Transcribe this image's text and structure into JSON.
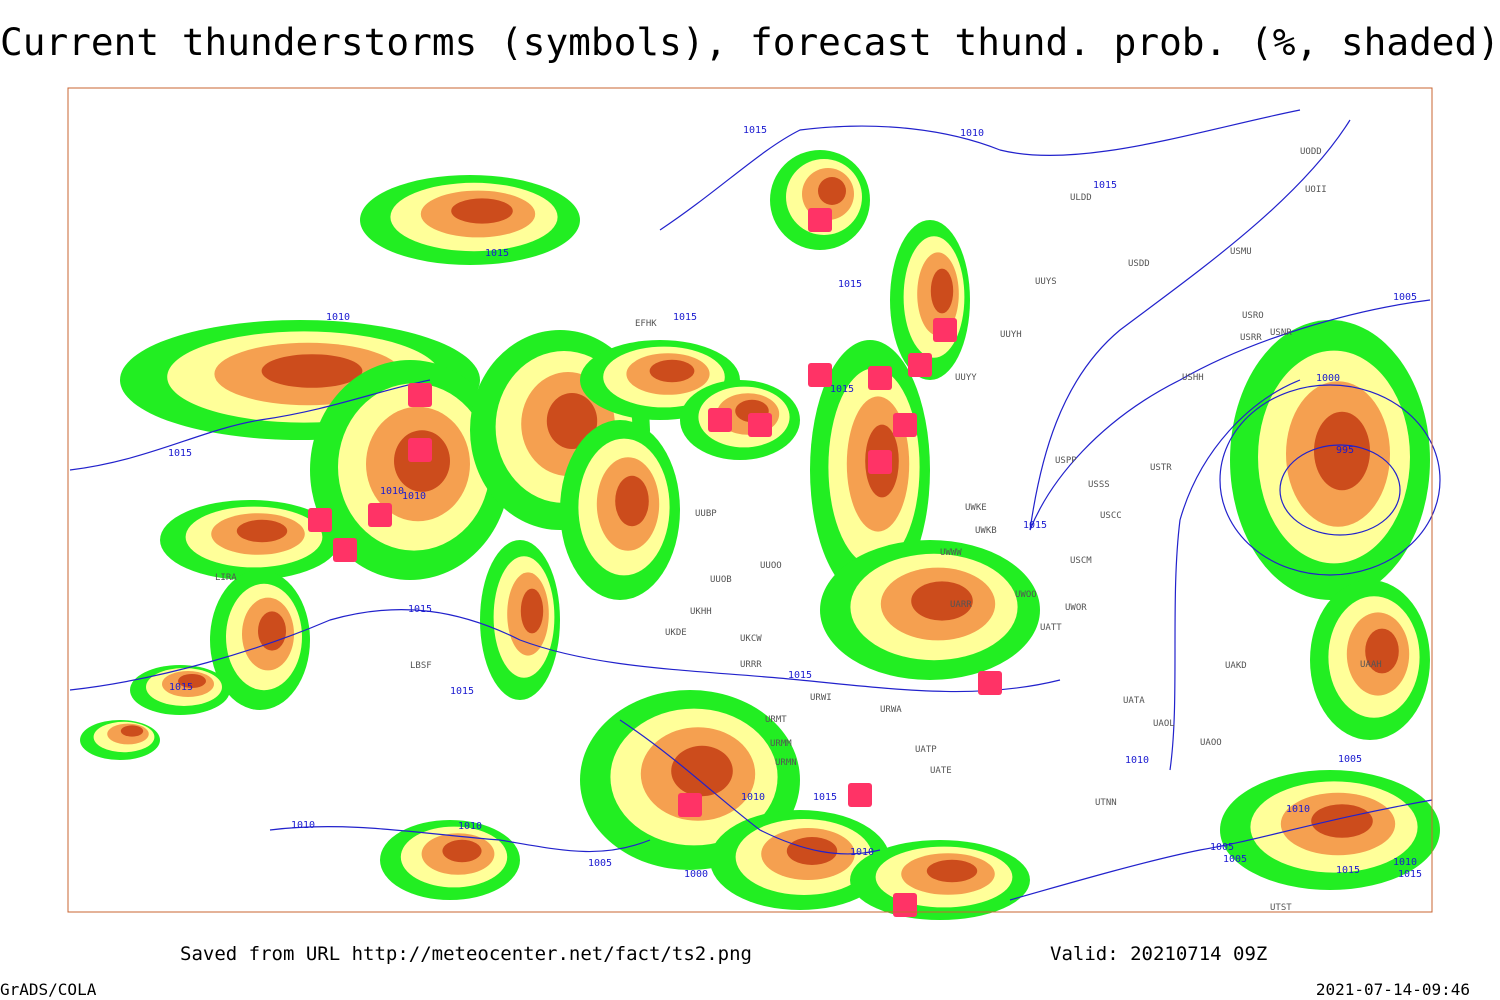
{
  "header": {
    "title": "Current thunderstorms (symbols), forecast thund. prob. (%, shaded)"
  },
  "footer": {
    "source": "Saved from URL http://meteocenter.net/fact/ts2.png",
    "valid": "Valid: 20210714 09Z",
    "software": "GrADS/COLA",
    "timestamp": "2021-07-14-09:46"
  },
  "isobar_labels": [
    "1015",
    "1010",
    "1015",
    "1015",
    "1010",
    "1015",
    "1015",
    "1015",
    "1015",
    "1010",
    "1010",
    "1015",
    "1015",
    "1015",
    "1015",
    "1005",
    "1000",
    "995",
    "1005",
    "1010",
    "1015",
    "1010",
    "1010",
    "1005",
    "1000",
    "1010",
    "1015",
    "1010",
    "1005",
    "1005",
    "1010",
    "1015",
    "1015",
    "1010"
  ],
  "stations": [
    "ULDD",
    "UUYS",
    "UUYH",
    "UUYY",
    "USDD",
    "USMU",
    "USRO",
    "USRR",
    "USNR",
    "USHH",
    "USPP",
    "USSS",
    "USTR",
    "USCC",
    "USCM",
    "UWKE",
    "UWKB",
    "UWWW",
    "UWOO",
    "UWOR",
    "UATT",
    "UARR",
    "UAKD",
    "UATA",
    "UAOL",
    "UAOO",
    "UATE",
    "UATP",
    "URWA",
    "URWI",
    "URRR",
    "URMT",
    "URMM",
    "URMN",
    "UKCW",
    "UKDE",
    "UKHH",
    "UUOB",
    "UUOO",
    "UUBP",
    "LIRA",
    "LBSF",
    "UTNN",
    "UAAH",
    "UODD",
    "UOII",
    "UTST",
    "EFHK"
  ]
}
